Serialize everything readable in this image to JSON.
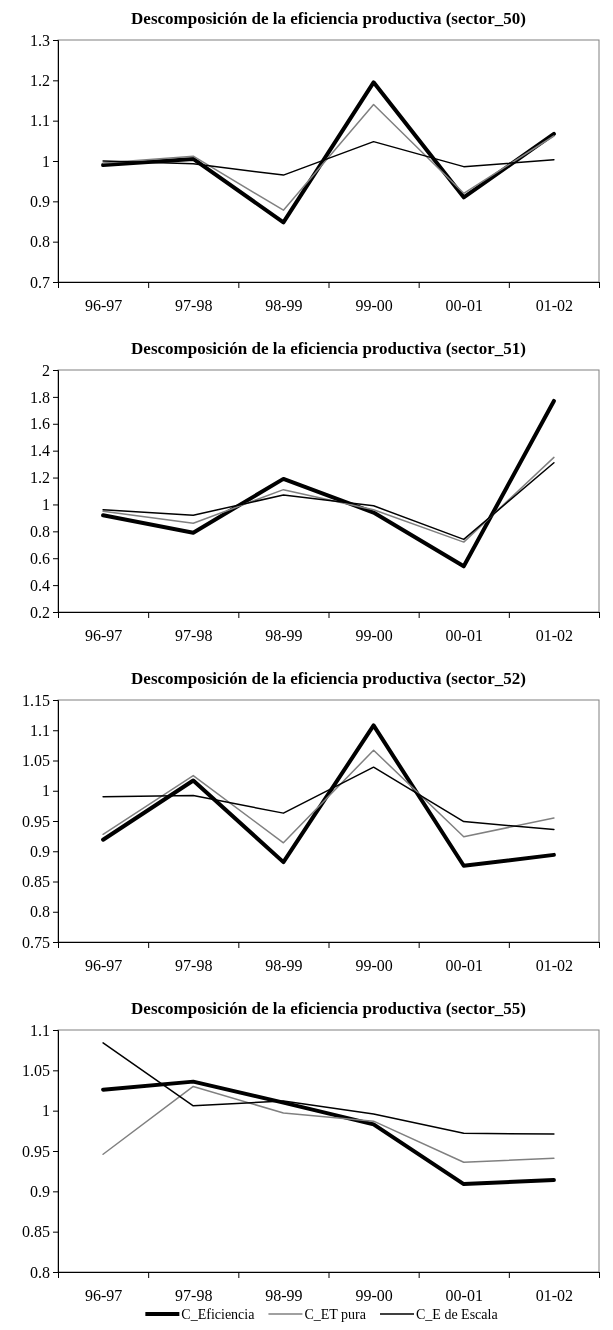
{
  "chart_data": [
    {
      "type": "line",
      "title": "Descomposición de la eficiencia productiva (sector_50)",
      "categories": [
        "96-97",
        "97-98",
        "98-99",
        "99-00",
        "00-01",
        "01-02"
      ],
      "ylim": [
        0.7,
        1.3
      ],
      "yticks": [
        0.7,
        0.8,
        0.9,
        1,
        1.1,
        1.2,
        1.3
      ],
      "series": [
        {
          "color": "#000000",
          "values": [
            0.99,
            1.005,
            0.848,
            1.195,
            0.91,
            1.067
          ]
        },
        {
          "color": "#808080",
          "values": [
            0.995,
            1.012,
            0.878,
            1.14,
            0.92,
            1.062
          ]
        },
        {
          "color": "#000000",
          "values": [
            1.0,
            0.993,
            0.965,
            1.048,
            0.986,
            1.003
          ]
        }
      ]
    },
    {
      "type": "line",
      "title": "Descomposición de la eficiencia productiva (sector_51)",
      "categories": [
        "96-97",
        "97-98",
        "98-99",
        "99-00",
        "00-01",
        "01-02"
      ],
      "ylim": [
        0.2,
        2
      ],
      "yticks": [
        0.2,
        0.4,
        0.6,
        0.8,
        1,
        1.2,
        1.4,
        1.6,
        1.8,
        2
      ],
      "series": [
        {
          "color": "#000000",
          "values": [
            0.92,
            0.79,
            1.19,
            0.94,
            0.54,
            1.77
          ]
        },
        {
          "color": "#808080",
          "values": [
            0.95,
            0.86,
            1.11,
            0.96,
            0.72,
            1.35
          ]
        },
        {
          "color": "#000000",
          "values": [
            0.96,
            0.92,
            1.07,
            0.99,
            0.74,
            1.31
          ]
        }
      ]
    },
    {
      "type": "line",
      "title": "Descomposición de la eficiencia productiva (sector_52)",
      "categories": [
        "96-97",
        "97-98",
        "98-99",
        "99-00",
        "00-01",
        "01-02"
      ],
      "ylim": [
        0.75,
        1.15
      ],
      "yticks": [
        0.75,
        0.8,
        0.85,
        0.9,
        0.95,
        1,
        1.05,
        1.1,
        1.15
      ],
      "series": [
        {
          "color": "#000000",
          "values": [
            0.919,
            1.017,
            0.882,
            1.108,
            0.876,
            0.894
          ]
        },
        {
          "color": "#808080",
          "values": [
            0.928,
            1.025,
            0.914,
            1.067,
            0.924,
            0.955
          ]
        },
        {
          "color": "#000000",
          "values": [
            0.99,
            0.992,
            0.963,
            1.039,
            0.949,
            0.936
          ]
        }
      ]
    },
    {
      "type": "line",
      "title": "Descomposición de la eficiencia productiva (sector_55)",
      "categories": [
        "96-97",
        "97-98",
        "98-99",
        "99-00",
        "00-01",
        "01-02"
      ],
      "ylim": [
        0.8,
        1.1
      ],
      "yticks": [
        0.8,
        0.85,
        0.9,
        0.95,
        1,
        1.05,
        1.1
      ],
      "legend": "bottom",
      "series": [
        {
          "name": "C_Eficiencia",
          "color": "#000000",
          "values": [
            1.026,
            1.036,
            1.01,
            0.983,
            0.909,
            0.914
          ]
        },
        {
          "name": "C_ET pura",
          "color": "#808080",
          "values": [
            0.946,
            1.03,
            0.997,
            0.987,
            0.936,
            0.941
          ]
        },
        {
          "name": "C_E de Escala",
          "color": "#000000",
          "values": [
            1.084,
            1.006,
            1.012,
            0.996,
            0.972,
            0.971
          ]
        }
      ]
    }
  ]
}
